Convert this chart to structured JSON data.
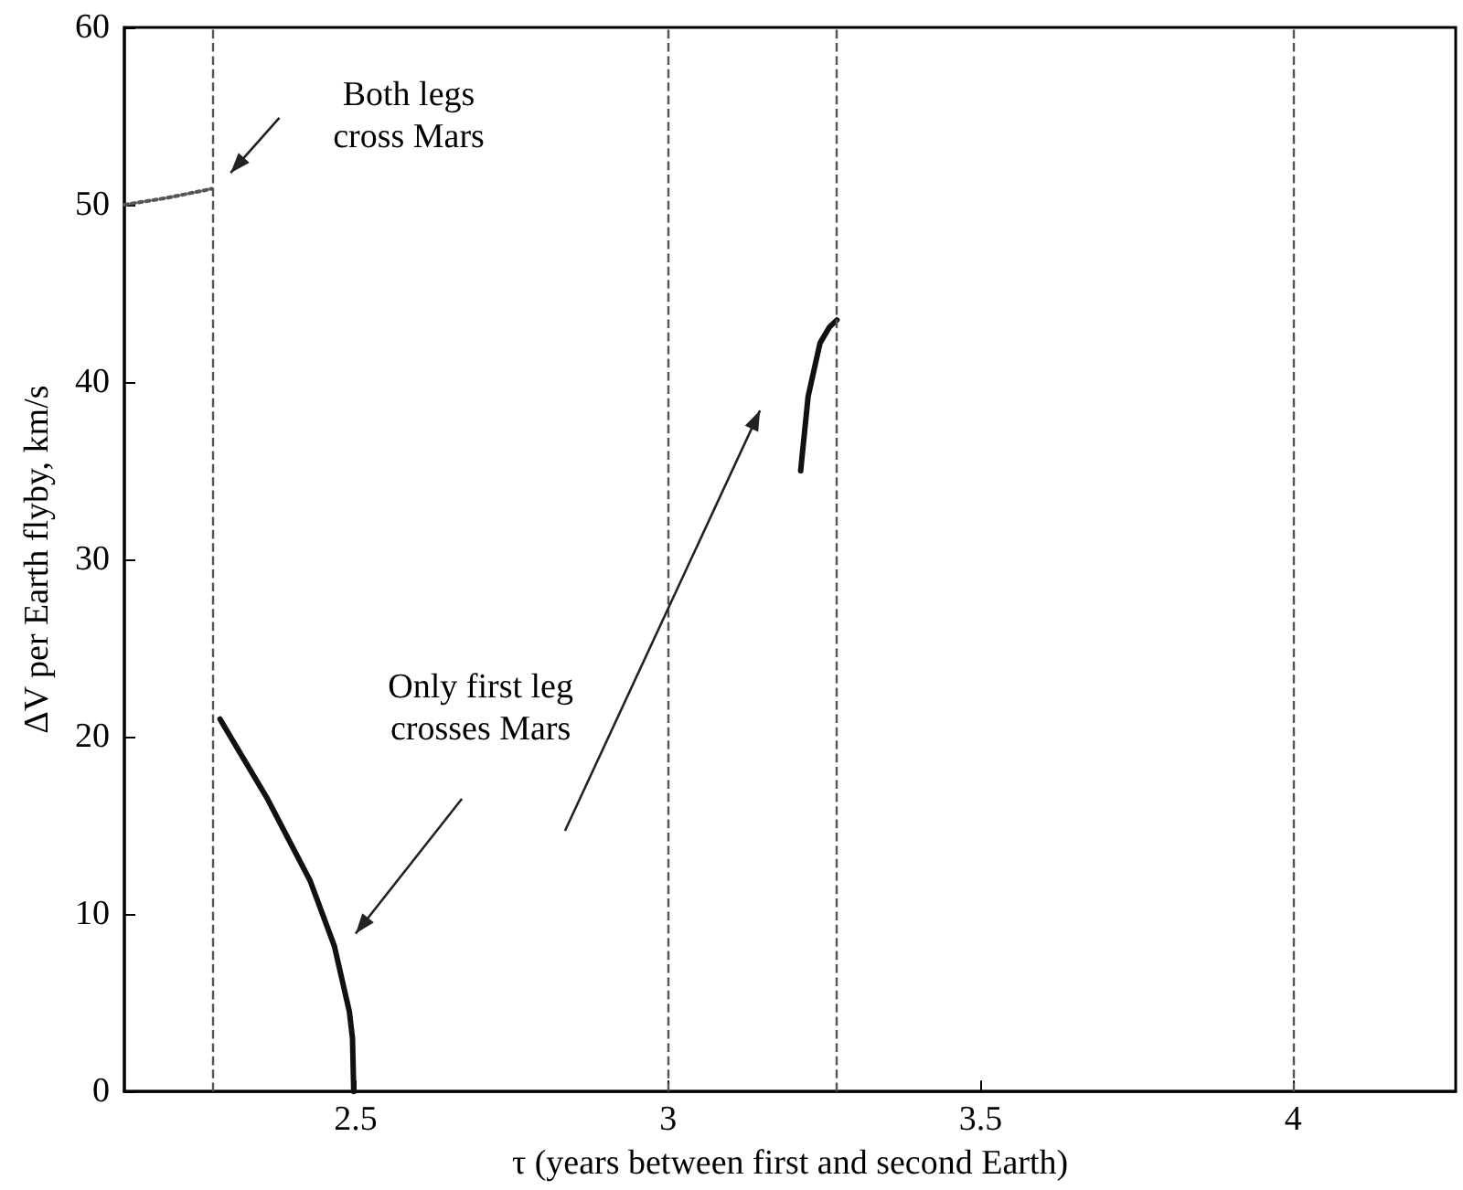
{
  "chart_data": {
    "type": "line",
    "xlabel": "τ (years between first and second Earth)",
    "ylabel": "ΔV per Earth flyby, km/s",
    "xlim": [
      2.13,
      4.26
    ],
    "xticks": [
      2.5,
      3,
      3.5,
      4
    ],
    "ylim": [
      0,
      60
    ],
    "yticks": [
      0,
      10,
      20,
      30,
      40,
      50,
      60
    ],
    "grid": false,
    "marker": "none",
    "series": [
      {
        "color": "#555555",
        "line_style": "dotted",
        "x": [
          2.13,
          2.2,
          2.27
        ],
        "values": [
          50.0,
          50.4,
          50.9
        ]
      },
      {
        "color": "#111111",
        "line_style": "solid",
        "x": [
          2.283,
          2.359,
          2.427,
          2.466,
          2.49,
          2.495,
          2.497
        ],
        "values": [
          21.0,
          16.5,
          11.9,
          8.2,
          4.5,
          3.0,
          0
        ]
      },
      {
        "color": "#111111",
        "line_style": "solid",
        "x": [
          3.212,
          3.224,
          3.243,
          3.258,
          3.27
        ],
        "values": [
          35.0,
          39.2,
          42.2,
          43.1,
          43.5
        ]
      }
    ],
    "ref_lines": [
      {
        "axis": "x",
        "value": 2.27,
        "color": "#555555",
        "line_style": "dashed"
      },
      {
        "axis": "x",
        "value": 3.0,
        "color": "#555555",
        "line_style": "dashed"
      },
      {
        "axis": "x",
        "value": 3.27,
        "color": "#555555",
        "line_style": "dashed"
      },
      {
        "axis": "x",
        "value": 4.0,
        "color": "#555555",
        "line_style": "dashed"
      }
    ],
    "annotations": [
      "Both legs\ncross Mars",
      "Only first leg\ncrosses Mars"
    ]
  }
}
